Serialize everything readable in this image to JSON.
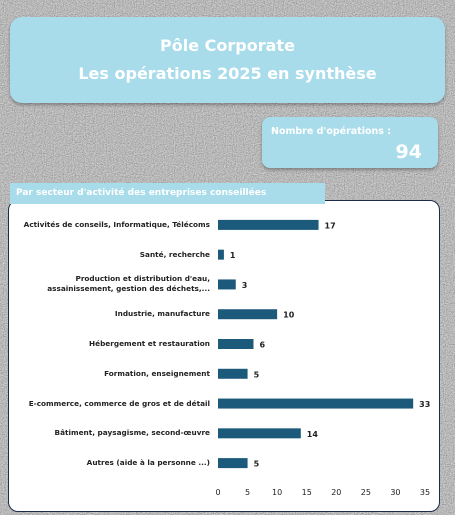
{
  "header": {
    "title_line1": "Pôle Corporate",
    "title_line2": "Les opérations 2025 en synthèse"
  },
  "kpi": {
    "label": "Nombre d'opérations :",
    "value": 94
  },
  "chart_data": {
    "type": "bar",
    "orientation": "horizontal",
    "title": "Par secteur d'activité des entreprises conseillées",
    "categories": [
      "Activités de conseils, Informatique, Télécoms",
      "Santé, recherche",
      "Production et distribution d'eau, assainissement, gestion des déchets,...",
      "Industrie, manufacture",
      "Hébergement et restauration",
      "Formation, enseignement",
      "E-commerce, commerce de gros et de détail",
      "Bâtiment, paysagisme, second-œuvre",
      "Autres (aide à la personne ...)"
    ],
    "values": [
      17,
      1,
      3,
      10,
      6,
      5,
      33,
      14,
      5
    ],
    "color": "#1b5a7a",
    "xlim": [
      0,
      35
    ],
    "xticks": [
      0,
      5,
      10,
      15,
      20,
      25,
      30,
      35
    ]
  }
}
